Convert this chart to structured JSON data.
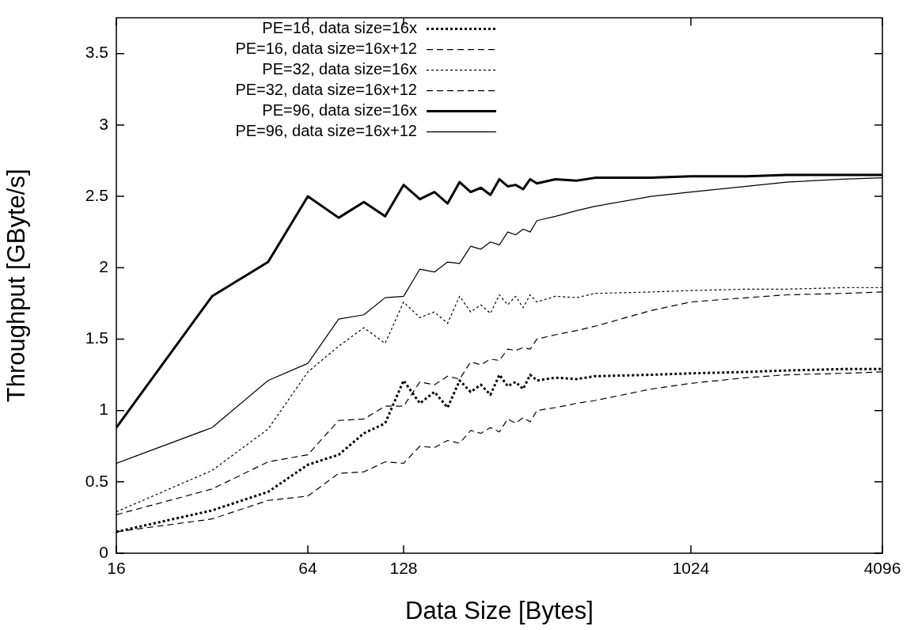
{
  "chart_data": {
    "type": "line",
    "xlabel": "Data Size [Bytes]",
    "ylabel": "Throughput [GByte/s]",
    "log": "x",
    "x": [
      16,
      32,
      48,
      64,
      80,
      96,
      112,
      128,
      144,
      160,
      176,
      192,
      208,
      224,
      240,
      256,
      272,
      288,
      304,
      320,
      336,
      384,
      448,
      512,
      768,
      1024,
      1536,
      2048,
      3072,
      4096
    ],
    "xlim": [
      16,
      4096
    ],
    "xticks": [
      16,
      64,
      128,
      1024,
      4096
    ],
    "ylim": [
      0,
      3.75
    ],
    "yticks": [
      0,
      0.5,
      1,
      1.5,
      2,
      2.5,
      3,
      3.5
    ],
    "grid": false,
    "legend": "top left",
    "marker": "none",
    "series": [
      {
        "name": "PE=16, data size=16x",
        "color": "#000000",
        "line_style": "dotted",
        "values": [
          0.15,
          0.3,
          0.43,
          0.62,
          0.69,
          0.84,
          0.91,
          1.21,
          1.05,
          1.13,
          1.02,
          1.21,
          1.13,
          1.18,
          1.11,
          1.25,
          1.17,
          1.2,
          1.15,
          1.25,
          1.21,
          1.23,
          1.22,
          1.24,
          1.25,
          1.26,
          1.27,
          1.28,
          1.29,
          1.29
        ]
      },
      {
        "name": "PE=16, data size=16x+12",
        "color": "#000000",
        "line_style": "dashed",
        "values": [
          0.15,
          0.24,
          0.37,
          0.4,
          0.56,
          0.57,
          0.64,
          0.63,
          0.75,
          0.74,
          0.79,
          0.77,
          0.86,
          0.84,
          0.88,
          0.85,
          0.94,
          0.91,
          0.95,
          0.92,
          1.0,
          1.02,
          1.05,
          1.07,
          1.15,
          1.19,
          1.23,
          1.25,
          1.26,
          1.27
        ]
      },
      {
        "name": "PE=32, data size=16x",
        "color": "#000000",
        "line_style": "dotted",
        "values": [
          0.29,
          0.58,
          0.87,
          1.27,
          1.45,
          1.58,
          1.47,
          1.76,
          1.65,
          1.69,
          1.61,
          1.8,
          1.69,
          1.74,
          1.68,
          1.81,
          1.74,
          1.8,
          1.72,
          1.81,
          1.76,
          1.8,
          1.79,
          1.82,
          1.83,
          1.84,
          1.85,
          1.85,
          1.86,
          1.86
        ]
      },
      {
        "name": "PE=32, data size=16x+12",
        "color": "#000000",
        "line_style": "dashed",
        "values": [
          0.27,
          0.45,
          0.64,
          0.69,
          0.93,
          0.94,
          1.03,
          1.03,
          1.2,
          1.18,
          1.24,
          1.22,
          1.34,
          1.32,
          1.36,
          1.35,
          1.43,
          1.42,
          1.44,
          1.43,
          1.5,
          1.53,
          1.56,
          1.59,
          1.7,
          1.76,
          1.79,
          1.81,
          1.82,
          1.83
        ]
      },
      {
        "name": "PE=96, data size=16x",
        "color": "#000000",
        "line_style": "solid",
        "values": [
          0.88,
          1.8,
          2.04,
          2.5,
          2.35,
          2.46,
          2.36,
          2.58,
          2.48,
          2.53,
          2.45,
          2.6,
          2.53,
          2.56,
          2.51,
          2.62,
          2.57,
          2.58,
          2.55,
          2.62,
          2.59,
          2.62,
          2.61,
          2.63,
          2.63,
          2.64,
          2.64,
          2.65,
          2.65,
          2.65
        ]
      },
      {
        "name": "PE=96, data size=16x+12",
        "color": "#000000",
        "line_style": "solid",
        "values": [
          0.63,
          0.88,
          1.21,
          1.33,
          1.64,
          1.67,
          1.79,
          1.8,
          1.99,
          1.97,
          2.04,
          2.03,
          2.15,
          2.13,
          2.18,
          2.16,
          2.25,
          2.23,
          2.27,
          2.25,
          2.33,
          2.36,
          2.4,
          2.43,
          2.5,
          2.53,
          2.57,
          2.6,
          2.62,
          2.63
        ]
      }
    ]
  }
}
